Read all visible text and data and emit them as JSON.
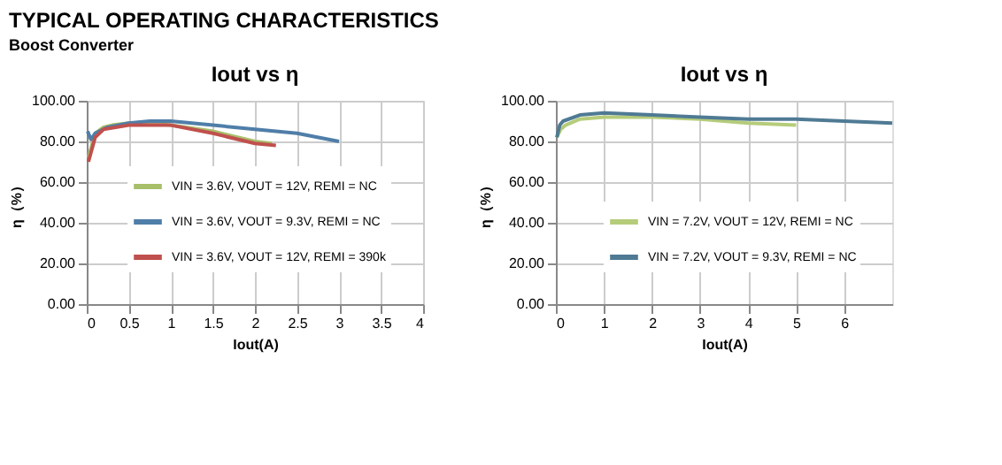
{
  "chart_data": [
    {
      "type": "line",
      "title": "Iout vs η",
      "xlabel": "Iout(A)",
      "ylabel": "η（%）",
      "annotations": [
        "TYPICAL OPERATING CHARACTERISTICS",
        "Boost Converter"
      ],
      "xlim": [
        0,
        4
      ],
      "xticks": [
        0,
        0.5,
        1,
        1.5,
        2,
        2.5,
        3,
        3.5,
        4
      ],
      "ylim": [
        0,
        100
      ],
      "yticks": [
        {
          "value": 0,
          "label": "0.00"
        },
        {
          "value": 20,
          "label": "20.00"
        },
        {
          "value": 40,
          "label": "40.00"
        },
        {
          "value": 60,
          "label": "60.00"
        },
        {
          "value": 80,
          "label": "80.00"
        },
        {
          "value": 100,
          "label": "100.00"
        }
      ],
      "grid": true,
      "legend": "bottom right",
      "marker": "none",
      "line_style": "solid",
      "series": [
        {
          "name": "VIN = 3.6V, VOUT = 12V, REMI = NC",
          "color": "#a8bf6a",
          "x": [
            0.02,
            0.1,
            0.2,
            0.3,
            0.5,
            0.7,
            1,
            1.5,
            2,
            2.2
          ],
          "values": [
            72,
            84,
            87,
            88,
            89,
            89,
            88,
            85,
            80,
            79
          ]
        },
        {
          "name": "VIN = 3.6V, VOUT = 9.3V, REMI = NC",
          "color": "#4f7ea8",
          "x": [
            0.01,
            0.05,
            0.1,
            0.25,
            0.5,
            0.75,
            1,
            1.5,
            2,
            2.5,
            3
          ],
          "values": [
            85,
            81,
            84,
            87,
            89,
            90,
            90,
            88,
            86,
            84,
            80
          ]
        },
        {
          "name": "VIN = 3.6V, VOUT = 12V, REMI = 390k",
          "color": "#c0504d",
          "x": [
            0.02,
            0.1,
            0.2,
            0.5,
            1,
            1.5,
            2,
            2.25
          ],
          "values": [
            70,
            82,
            86,
            88,
            88,
            84,
            79,
            78
          ]
        }
      ]
    },
    {
      "type": "line",
      "title": "Iout vs η",
      "xlabel": "Iout(A)",
      "ylabel": "η（%）",
      "xlim": [
        0,
        7
      ],
      "xticks": [
        0,
        1,
        2,
        3,
        4,
        5,
        6
      ],
      "ylim": [
        0,
        100
      ],
      "yticks": [
        {
          "value": 0,
          "label": "0.00"
        },
        {
          "value": 20,
          "label": "20.00"
        },
        {
          "value": 40,
          "label": "40.00"
        },
        {
          "value": 60,
          "label": "60.00"
        },
        {
          "value": 80,
          "label": "80.00"
        },
        {
          "value": 100,
          "label": "100.00"
        }
      ],
      "grid": true,
      "legend": "bottom right",
      "marker": "none",
      "line_style": "solid",
      "series": [
        {
          "name": "VIN = 7.2V, VOUT = 12V, REMI = NC",
          "color": "#b5cc7a",
          "x": [
            0.02,
            0.1,
            0.2,
            0.5,
            1,
            2,
            3,
            4,
            5
          ],
          "values": [
            82,
            86,
            88,
            91,
            92,
            92,
            91,
            89,
            88
          ]
        },
        {
          "name": "VIN = 7.2V, VOUT = 9.3V, REMI = NC",
          "color": "#4f7a94",
          "x": [
            0.02,
            0.08,
            0.15,
            0.5,
            1,
            2,
            3,
            4,
            5,
            6,
            7
          ],
          "values": [
            82,
            88,
            90,
            93,
            94,
            93,
            92,
            91,
            91,
            90,
            89
          ]
        }
      ]
    }
  ]
}
